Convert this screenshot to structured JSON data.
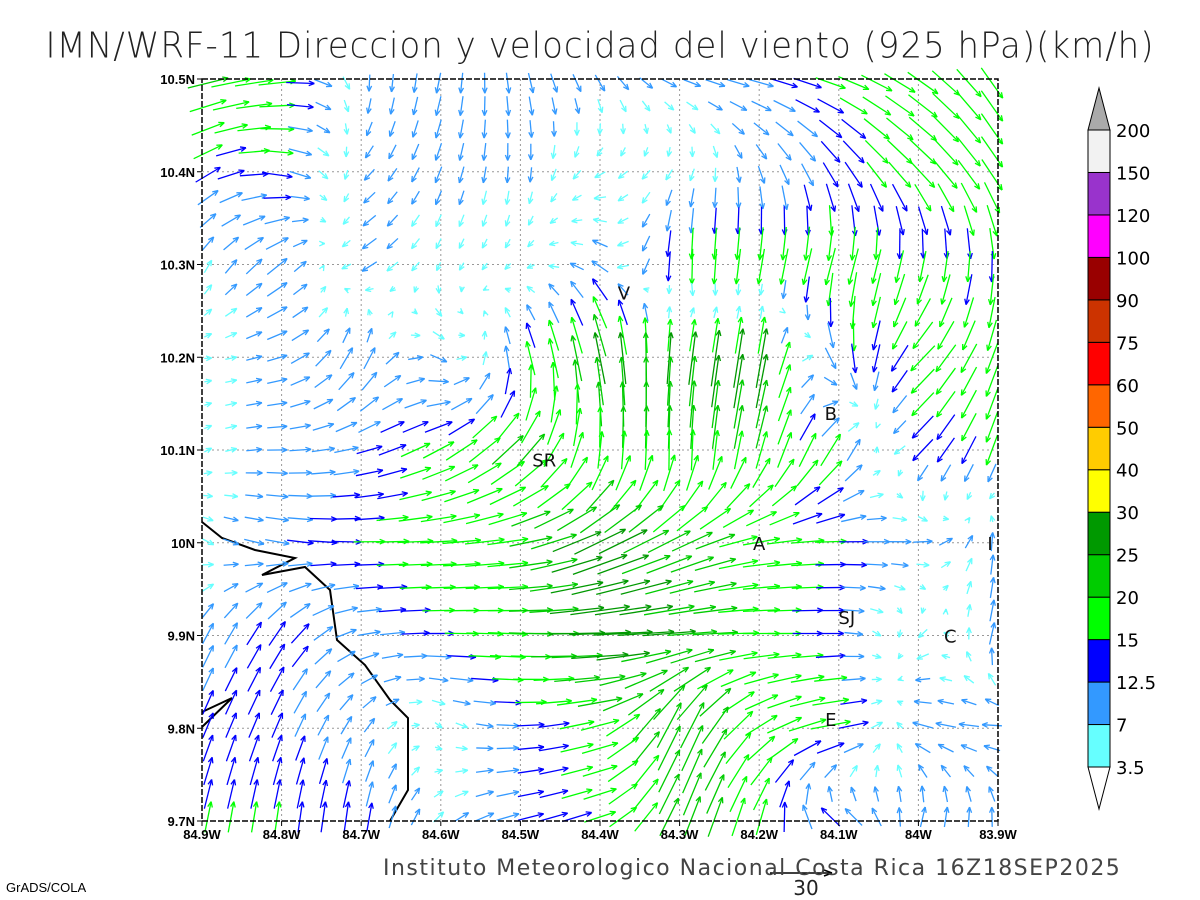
{
  "title": "IMN/WRF-11 Direccion y velocidad del viento (925 hPa)(km/h)",
  "footer": "Instituto Meteorologico Nacional Costa Rica 16Z18SEP2025",
  "credit": "GrADS/COLA",
  "reference_vector": {
    "value": 30,
    "label": "30"
  },
  "chart_data": {
    "type": "vector-field",
    "title": "IMN/WRF-11 Direccion y velocidad del viento (925 hPa)(km/h)",
    "x_ticks": [
      "84.9W",
      "84.8W",
      "84.7W",
      "84.6W",
      "84.5W",
      "84.4W",
      "84.3W",
      "84.2W",
      "84.1W",
      "84W",
      "83.9W"
    ],
    "y_ticks": [
      "10.5N",
      "10.4N",
      "10.3N",
      "10.2N",
      "10.1N",
      "10N",
      "9.9N",
      "9.8N",
      "9.7N"
    ],
    "lon_range": [
      -84.9,
      -83.9
    ],
    "lat_range": [
      9.7,
      10.5
    ],
    "grid": true,
    "cities": [
      {
        "label": "V",
        "lon": -84.37,
        "lat": 10.27
      },
      {
        "label": "SR",
        "lon": -84.47,
        "lat": 10.09
      },
      {
        "label": "B",
        "lon": -84.11,
        "lat": 10.14
      },
      {
        "label": "A",
        "lon": -84.2,
        "lat": 10.0
      },
      {
        "label": "SJ",
        "lon": -84.09,
        "lat": 9.92
      },
      {
        "label": "C",
        "lon": -83.96,
        "lat": 9.9
      },
      {
        "label": "E",
        "lon": -84.11,
        "lat": 9.81
      },
      {
        "label": "I",
        "lon": -83.91,
        "lat": 10.0
      }
    ],
    "wind_coarse_lats": [
      10.5,
      10.4,
      10.3,
      10.2,
      10.1,
      10.0,
      9.9,
      9.8,
      9.7
    ],
    "wind_coarse_lons": [
      -84.9,
      -84.8,
      -84.7,
      -84.6,
      -84.5,
      -84.4,
      -84.3,
      -84.2,
      -84.1,
      -84.0,
      -83.9
    ],
    "wind_u_v_kmh": [
      [
        [
          20,
          5
        ],
        [
          18,
          2
        ],
        [
          0,
          -8
        ],
        [
          -2,
          -10
        ],
        [
          2,
          -10
        ],
        [
          5,
          -8
        ],
        [
          8,
          -3
        ],
        [
          12,
          -3
        ],
        [
          15,
          -5
        ],
        [
          15,
          -10
        ],
        [
          10,
          -15
        ]
      ],
      [
        [
          12,
          8
        ],
        [
          15,
          -3
        ],
        [
          -5,
          -5
        ],
        [
          -3,
          -8
        ],
        [
          0,
          -8
        ],
        [
          -5,
          -3
        ],
        [
          -3,
          -5
        ],
        [
          3,
          -8
        ],
        [
          8,
          -12
        ],
        [
          12,
          -12
        ],
        [
          10,
          -15
        ]
      ],
      [
        [
          3,
          6
        ],
        [
          10,
          8
        ],
        [
          -8,
          -5
        ],
        [
          -2,
          -4
        ],
        [
          -3,
          -3
        ],
        [
          -8,
          5
        ],
        [
          0,
          -18
        ],
        [
          -3,
          -18
        ],
        [
          -5,
          -18
        ],
        [
          -3,
          -15
        ],
        [
          0,
          -15
        ]
      ],
      [
        [
          3,
          0
        ],
        [
          10,
          3
        ],
        [
          5,
          12
        ],
        [
          8,
          -4
        ],
        [
          -4,
          15
        ],
        [
          -5,
          25
        ],
        [
          3,
          25
        ],
        [
          5,
          30
        ],
        [
          5,
          -15
        ],
        [
          -12,
          -12
        ],
        [
          -5,
          -15
        ]
      ],
      [
        [
          3,
          2
        ],
        [
          10,
          0
        ],
        [
          12,
          3
        ],
        [
          15,
          8
        ],
        [
          15,
          15
        ],
        [
          2,
          18
        ],
        [
          0,
          20
        ],
        [
          5,
          18
        ],
        [
          10,
          15
        ],
        [
          -10,
          -10
        ],
        [
          -5,
          -15
        ]
      ],
      [
        [
          5,
          -3
        ],
        [
          12,
          -2
        ],
        [
          15,
          0
        ],
        [
          18,
          1
        ],
        [
          20,
          3
        ],
        [
          25,
          12
        ],
        [
          20,
          10
        ],
        [
          18,
          3
        ],
        [
          15,
          0
        ],
        [
          10,
          0
        ],
        [
          0,
          10
        ]
      ],
      [
        [
          5,
          10
        ],
        [
          8,
          12
        ],
        [
          10,
          2
        ],
        [
          15,
          0
        ],
        [
          20,
          -1
        ],
        [
          30,
          1
        ],
        [
          25,
          2
        ],
        [
          18,
          0
        ],
        [
          12,
          0
        ],
        [
          -5,
          -5
        ],
        [
          3,
          12
        ]
      ],
      [
        [
          5,
          12
        ],
        [
          5,
          12
        ],
        [
          5,
          8
        ],
        [
          3,
          -3
        ],
        [
          12,
          0
        ],
        [
          18,
          5
        ],
        [
          10,
          25
        ],
        [
          15,
          10
        ],
        [
          20,
          3
        ],
        [
          -10,
          3
        ],
        [
          -10,
          0
        ]
      ],
      [
        [
          3,
          15
        ],
        [
          2,
          15
        ],
        [
          2,
          15
        ],
        [
          5,
          5
        ],
        [
          12,
          3
        ],
        [
          15,
          5
        ],
        [
          8,
          20
        ],
        [
          5,
          18
        ],
        [
          -12,
          8
        ],
        [
          3,
          10
        ],
        [
          0,
          10
        ]
      ]
    ],
    "colorbar": {
      "labels": [
        "3.5",
        "7",
        "12.5",
        "15",
        "20",
        "25",
        "30",
        "40",
        "50",
        "60",
        "75",
        "90",
        "100",
        "120",
        "150",
        "200"
      ],
      "levels": [
        3.5,
        7,
        12.5,
        15,
        20,
        25,
        30,
        40,
        50,
        60,
        75,
        90,
        100,
        120,
        150,
        200
      ],
      "colors": [
        "#ffffff",
        "#66ffff",
        "#3399ff",
        "#0000ff",
        "#00ff00",
        "#00cc00",
        "#009900",
        "#ffff00",
        "#ffcc00",
        "#ff6600",
        "#ff0000",
        "#cc3300",
        "#990000",
        "#ff00ff",
        "#9933cc",
        "#f2f2f2",
        "#aaaaaa"
      ]
    }
  }
}
